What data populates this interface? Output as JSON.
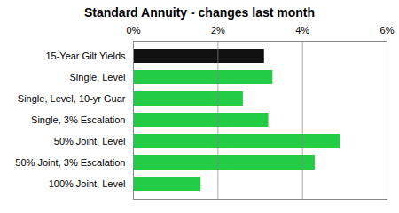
{
  "chart_data": {
    "type": "bar",
    "orientation": "horizontal",
    "title": "Standard Annuity - changes last month",
    "categories": [
      "100% Joint, Level",
      "50% Joint, 3% Escalation",
      "50% Joint, Level",
      "Single, 3% Escalation",
      "Single, Level, 10-yr Guar",
      "Single, Level",
      "15-Year Gilt Yields"
    ],
    "values": [
      1.6,
      4.3,
      4.9,
      3.2,
      2.6,
      3.3,
      3.1
    ],
    "colors": [
      "#22cc44",
      "#22cc44",
      "#22cc44",
      "#22cc44",
      "#22cc44",
      "#22cc44",
      "#111111"
    ],
    "xlim": [
      0,
      6
    ],
    "xticks": [
      {
        "value": 0,
        "label": "0%"
      },
      {
        "value": 2,
        "label": "2%"
      },
      {
        "value": 4,
        "label": "4%"
      },
      {
        "value": 6,
        "label": "6%"
      }
    ],
    "grid": true
  }
}
